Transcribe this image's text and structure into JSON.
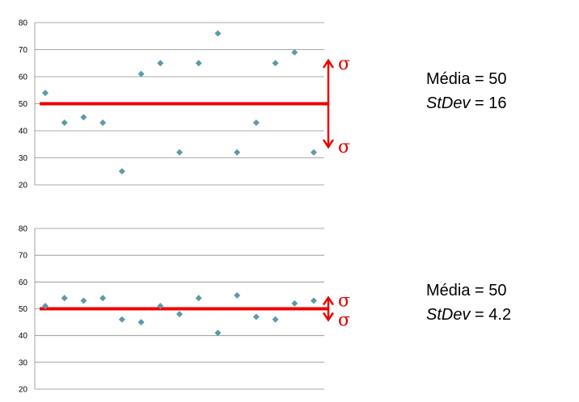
{
  "colors": {
    "marker": "#5a9aaa",
    "mean_line": "#ee0000",
    "annotation": "#e00000",
    "grid": "#8c8c8c"
  },
  "charts": [
    {
      "mean_label": "Média = 50",
      "stdev_name": "StDev",
      "stdev_value_text": " = 16",
      "sigma_symbol": "σ"
    },
    {
      "mean_label": "Média = 50",
      "stdev_name": "StDev",
      "stdev_value_text": " = 4.2",
      "sigma_symbol": "σ"
    }
  ],
  "chart_data": [
    {
      "type": "scatter",
      "x": [
        1,
        2,
        3,
        4,
        5,
        6,
        7,
        8,
        9,
        10,
        11,
        12,
        13,
        14,
        15
      ],
      "y": [
        54,
        43,
        45,
        43,
        25,
        61,
        65,
        32,
        65,
        76,
        32,
        43,
        65,
        69,
        32
      ],
      "ylim": [
        20,
        80
      ],
      "yticks": [
        20,
        30,
        40,
        50,
        60,
        70,
        80
      ],
      "grid": true,
      "mean": 50,
      "stdev": 16
    },
    {
      "type": "scatter",
      "x": [
        1,
        2,
        3,
        4,
        5,
        6,
        7,
        8,
        9,
        10,
        11,
        12,
        13,
        14,
        15
      ],
      "y": [
        51,
        54,
        53,
        54,
        46,
        45,
        51,
        48,
        54,
        41,
        55,
        47,
        46,
        52,
        53
      ],
      "ylim": [
        20,
        80
      ],
      "yticks": [
        20,
        30,
        40,
        50,
        60,
        70,
        80
      ],
      "grid": true,
      "mean": 50,
      "stdev": 4.2
    }
  ]
}
